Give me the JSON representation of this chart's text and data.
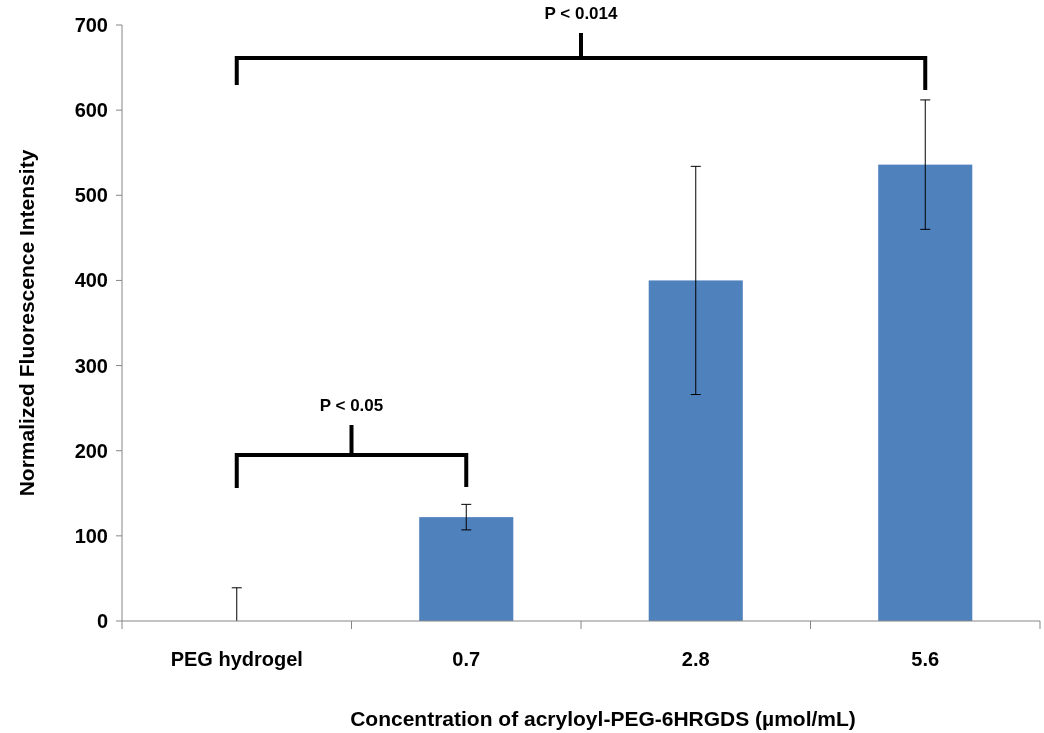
{
  "chart_data": {
    "type": "bar",
    "xlabel": "Concentration of acryloyl-PEG-6HRGDS (µmol/mL)",
    "ylabel": "Normalized Fluorescence Intensity",
    "categories": [
      "PEG hydrogel",
      "0.7",
      "2.8",
      "5.6"
    ],
    "values": [
      0,
      122,
      400,
      536
    ],
    "errors": [
      39,
      15,
      134,
      76
    ],
    "color": "#4f81bd",
    "ylim": [
      0,
      700
    ],
    "yticks": [
      0,
      100,
      200,
      300,
      400,
      500,
      600,
      700
    ],
    "annotations": [
      "P < 0.05",
      "P < 0.014"
    ]
  }
}
